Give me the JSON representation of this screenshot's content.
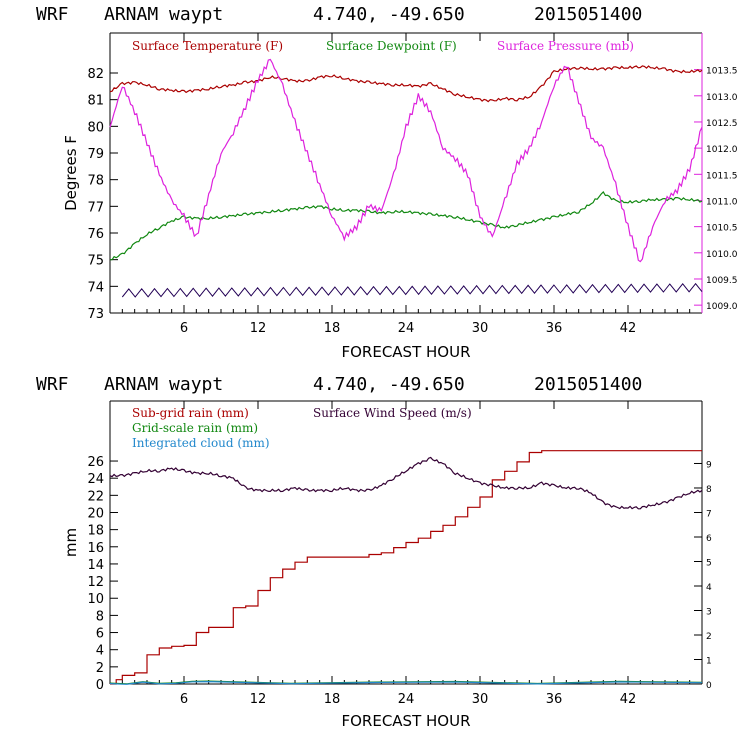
{
  "chart_data": [
    {
      "type": "line",
      "header": [
        "WRF",
        "ARNAM waypt",
        "4.740, -49.650",
        "2015051400"
      ],
      "xlabel": "FORECAST HOUR",
      "ylabel": "Degrees F",
      "xlim": [
        0,
        48
      ],
      "x_ticks": [
        6,
        12,
        18,
        24,
        30,
        36,
        42
      ],
      "ylim": [
        73,
        83.5
      ],
      "y_ticks": [
        73,
        74,
        75,
        76,
        77,
        78,
        79,
        80,
        81,
        82
      ],
      "y2lim": [
        1008.85,
        1014.2
      ],
      "y2_ticks": [
        "1009.0",
        "1009.5",
        "1010.0",
        "1010.5",
        "1011.0",
        "1011.5",
        "1012.0",
        "1012.5",
        "1013.0",
        "1013.5"
      ],
      "series": [
        {
          "name": "Surface Temperature (F)",
          "axis": "left",
          "color": "#aa0000",
          "x": [
            0,
            1,
            2,
            3,
            4,
            5,
            6,
            7,
            8,
            9,
            10,
            11,
            12,
            13,
            14,
            15,
            16,
            17,
            18,
            19,
            20,
            21,
            22,
            23,
            24,
            25,
            26,
            27,
            28,
            29,
            30,
            31,
            32,
            33,
            34,
            35,
            36,
            37,
            38,
            39,
            40,
            41,
            42,
            43,
            44,
            45,
            46,
            47,
            48
          ],
          "y": [
            81.3,
            81.6,
            81.65,
            81.55,
            81.4,
            81.35,
            81.3,
            81.35,
            81.4,
            81.5,
            81.55,
            81.65,
            81.7,
            81.85,
            81.8,
            81.7,
            81.7,
            81.85,
            81.9,
            81.8,
            81.7,
            81.65,
            81.6,
            81.55,
            81.55,
            81.5,
            81.6,
            81.4,
            81.2,
            81.1,
            81.0,
            80.95,
            81.05,
            81.0,
            81.1,
            81.5,
            82.05,
            82.15,
            82.2,
            82.15,
            82.15,
            82.2,
            82.2,
            82.25,
            82.2,
            82.15,
            82.05,
            82.05,
            82.1
          ]
        },
        {
          "name": "Surface Dewpoint (F)",
          "axis": "left",
          "color": "#118811",
          "x": [
            0,
            1,
            2,
            3,
            4,
            5,
            6,
            7,
            8,
            9,
            10,
            11,
            12,
            13,
            14,
            15,
            16,
            17,
            18,
            19,
            20,
            21,
            22,
            23,
            24,
            25,
            26,
            27,
            28,
            29,
            30,
            31,
            32,
            33,
            34,
            35,
            36,
            37,
            38,
            39,
            40,
            41,
            42,
            43,
            44,
            45,
            46,
            47,
            48
          ],
          "y": [
            75.0,
            75.2,
            75.6,
            75.95,
            76.2,
            76.45,
            76.6,
            76.55,
            76.55,
            76.6,
            76.65,
            76.7,
            76.75,
            76.8,
            76.85,
            76.9,
            76.95,
            77.0,
            76.9,
            76.85,
            76.85,
            76.8,
            76.75,
            76.8,
            76.8,
            76.75,
            76.7,
            76.65,
            76.6,
            76.5,
            76.4,
            76.3,
            76.2,
            76.3,
            76.4,
            76.5,
            76.6,
            76.7,
            76.8,
            77.1,
            77.5,
            77.2,
            77.15,
            77.2,
            77.25,
            77.25,
            77.3,
            77.25,
            77.2
          ]
        },
        {
          "name": "Surface Pressure (mb)",
          "axis": "right",
          "color": "#dd22dd",
          "x": [
            0,
            1,
            2,
            3,
            4,
            5,
            6,
            7,
            8,
            9,
            10,
            11,
            12,
            13,
            14,
            15,
            16,
            17,
            18,
            19,
            20,
            21,
            22,
            23,
            24,
            25,
            26,
            27,
            28,
            29,
            30,
            31,
            32,
            33,
            34,
            35,
            36,
            37,
            38,
            39,
            40,
            41,
            42,
            43,
            44,
            45,
            46,
            47,
            48
          ],
          "y": [
            1012.4,
            1013.2,
            1012.7,
            1012.1,
            1011.5,
            1011.0,
            1010.7,
            1010.3,
            1011.1,
            1011.9,
            1012.3,
            1012.8,
            1013.3,
            1013.7,
            1013.2,
            1012.5,
            1011.9,
            1011.3,
            1010.7,
            1010.3,
            1010.5,
            1010.9,
            1010.8,
            1011.5,
            1012.4,
            1013.0,
            1012.7,
            1012.0,
            1011.8,
            1011.5,
            1010.7,
            1010.3,
            1011.0,
            1011.7,
            1012.0,
            1012.5,
            1013.2,
            1013.6,
            1012.9,
            1012.2,
            1012.0,
            1011.3,
            1010.5,
            1009.8,
            1010.5,
            1011.0,
            1011.2,
            1011.6,
            1012.4
          ]
        },
        {
          "name": "",
          "axis": "left",
          "color": "#220055",
          "style": "wind-barbs",
          "x": [
            1,
            48
          ],
          "y": [
            73.75,
            73.95
          ]
        }
      ]
    },
    {
      "type": "line",
      "header": [
        "WRF",
        "ARNAM waypt",
        "4.740, -49.650",
        "2015051400"
      ],
      "xlabel": "FORECAST HOUR",
      "ylabel": "mm",
      "xlim": [
        0,
        48
      ],
      "x_ticks": [
        6,
        12,
        18,
        24,
        30,
        36,
        42
      ],
      "ylim": [
        0,
        33
      ],
      "y_ticks": [
        0,
        2,
        4,
        6,
        8,
        10,
        12,
        14,
        16,
        18,
        20,
        22,
        24,
        26
      ],
      "y2lim": [
        0,
        11.55
      ],
      "y2_ticks": [
        0,
        1,
        2,
        3,
        4,
        5,
        6,
        7,
        8,
        9
      ],
      "series": [
        {
          "name": "Sub-grid rain (mm)",
          "axis": "left",
          "color": "#aa0000",
          "step": true,
          "x": [
            0,
            0.5,
            1,
            2,
            3,
            4,
            5,
            6,
            7,
            8,
            9,
            10,
            11,
            12,
            13,
            14,
            15,
            16,
            17,
            18,
            19,
            20,
            21,
            22,
            23,
            24,
            25,
            26,
            27,
            28,
            29,
            30,
            31,
            32,
            33,
            34,
            35,
            36,
            42,
            48
          ],
          "y": [
            0,
            0.5,
            1.0,
            1.3,
            3.4,
            4.2,
            4.4,
            4.5,
            6.0,
            6.6,
            6.6,
            8.9,
            9.1,
            10.9,
            12.4,
            13.4,
            14.2,
            14.8,
            14.8,
            14.8,
            14.8,
            14.8,
            15.1,
            15.3,
            15.9,
            16.5,
            17.0,
            17.8,
            18.5,
            19.5,
            20.6,
            21.8,
            23.8,
            24.8,
            25.9,
            27.0,
            27.2,
            27.2,
            27.2,
            27.2
          ]
        },
        {
          "name": "Grid-scale rain (mm)",
          "axis": "left",
          "color": "#118811",
          "x": [
            0,
            8,
            48
          ],
          "y": [
            0.1,
            0.2,
            0.2
          ]
        },
        {
          "name": "Integrated cloud (mm)",
          "axis": "left",
          "color": "#2288cc",
          "x": [
            0,
            8,
            48
          ],
          "y": [
            0.05,
            0.15,
            0.15
          ]
        },
        {
          "name": "Surface Wind Speed (m/s)",
          "axis": "right",
          "color": "#330033",
          "x": [
            0,
            1,
            2,
            3,
            4,
            5,
            6,
            7,
            8,
            9,
            10,
            11,
            12,
            13,
            14,
            15,
            16,
            17,
            18,
            19,
            20,
            21,
            22,
            23,
            24,
            25,
            26,
            27,
            28,
            29,
            30,
            31,
            32,
            33,
            34,
            35,
            36,
            37,
            38,
            39,
            40,
            41,
            42,
            43,
            44,
            45,
            46,
            47,
            48
          ],
          "y": [
            8.5,
            8.5,
            8.6,
            8.7,
            8.7,
            8.8,
            8.7,
            8.6,
            8.6,
            8.5,
            8.4,
            8.0,
            7.9,
            7.9,
            7.9,
            8.0,
            7.9,
            7.9,
            7.9,
            8.0,
            7.9,
            7.9,
            8.1,
            8.4,
            8.7,
            9.0,
            9.2,
            9.0,
            8.6,
            8.4,
            8.2,
            8.1,
            8.0,
            8.0,
            8.0,
            8.2,
            8.1,
            8.0,
            8.0,
            7.8,
            7.4,
            7.2,
            7.2,
            7.2,
            7.3,
            7.4,
            7.6,
            7.8,
            7.9
          ]
        }
      ]
    }
  ]
}
